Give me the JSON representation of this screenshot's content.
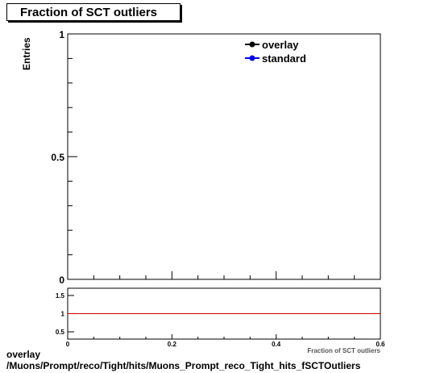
{
  "chart_data": {
    "type": "line",
    "title": "Fraction of SCT outliers",
    "ylabel": "Entries",
    "xlabel": "Fraction of SCT outliers",
    "legend_position": "top-right",
    "main": {
      "xlim": [
        0,
        0.6
      ],
      "ylim": [
        0,
        1
      ],
      "y_tick_labels": [
        "0",
        "0.5",
        "1"
      ],
      "series": [
        {
          "name": "overlay",
          "color": "#000000",
          "marker": "filled-circle",
          "x": [],
          "y": []
        },
        {
          "name": "standard",
          "color": "#0000ff",
          "marker": "filled-circle",
          "x": [],
          "y": []
        }
      ]
    },
    "ratio": {
      "xlim": [
        0,
        0.6
      ],
      "ylim": [
        0.3,
        1.7
      ],
      "x_tick_labels": [
        "0",
        "0.2",
        "0.4",
        "0.6"
      ],
      "y_tick_labels": [
        "0.5",
        "1",
        "1.5"
      ],
      "reference_line": {
        "y": 1,
        "color": "#cc0000"
      }
    }
  },
  "footer": {
    "line1": "overlay",
    "line2": "/Muons/Prompt/reco/Tight/hits/Muons_Prompt_reco_Tight_hits_fSCTOutliers"
  }
}
